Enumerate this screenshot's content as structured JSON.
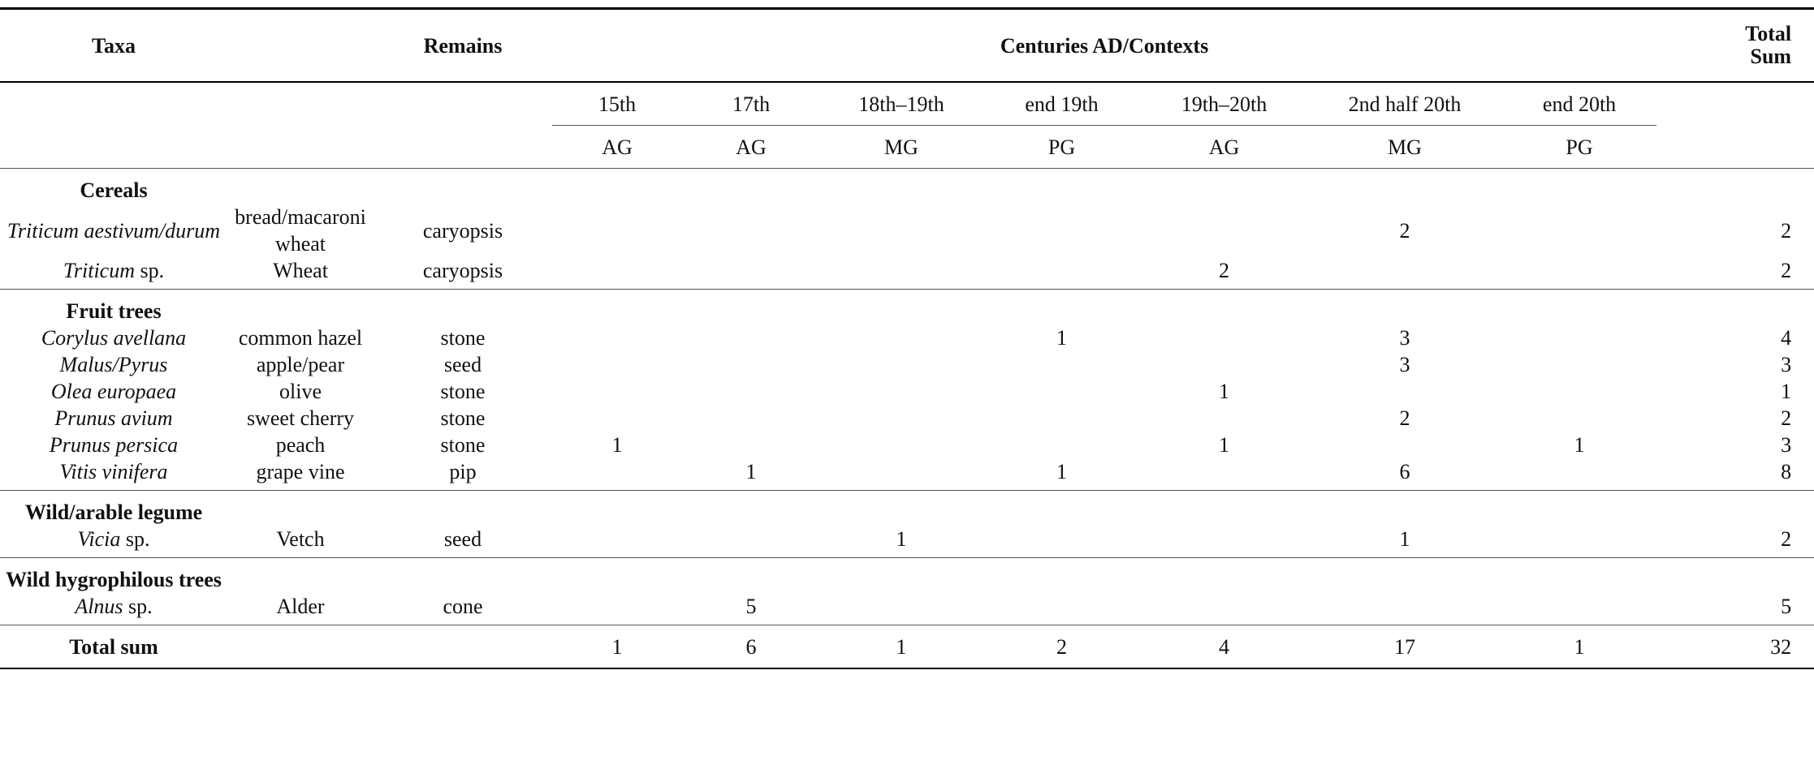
{
  "header": {
    "taxa": "Taxa",
    "remains": "Remains",
    "centuries": "Centuries AD/Contexts",
    "total": "Total Sum",
    "periods": [
      {
        "century": "15th",
        "context": "AG"
      },
      {
        "century": "17th",
        "context": "AG"
      },
      {
        "century": "18th–19th",
        "context": "MG"
      },
      {
        "century": "end 19th",
        "context": "PG"
      },
      {
        "century": "19th–20th",
        "context": "AG"
      },
      {
        "century": "2nd half 20th",
        "context": "MG"
      },
      {
        "century": "end 20th",
        "context": "PG"
      }
    ]
  },
  "groups": [
    {
      "name": "Cereals",
      "rows": [
        {
          "taxon": "Triticum aestivum/durum",
          "common": "bread/macaroni wheat",
          "remains": "caryopsis",
          "counts": [
            null,
            null,
            null,
            null,
            null,
            2,
            null
          ],
          "total": 2
        },
        {
          "taxon": "Triticum",
          "qualifier": "sp.",
          "common": "Wheat",
          "remains": "caryopsis",
          "counts": [
            null,
            null,
            null,
            null,
            2,
            null,
            null
          ],
          "total": 2
        }
      ]
    },
    {
      "name": "Fruit trees",
      "rows": [
        {
          "taxon": "Corylus avellana",
          "common": "common hazel",
          "remains": "stone",
          "counts": [
            null,
            null,
            null,
            1,
            null,
            3,
            null
          ],
          "total": 4
        },
        {
          "taxon": "Malus/Pyrus",
          "common": "apple/pear",
          "remains": "seed",
          "counts": [
            null,
            null,
            null,
            null,
            null,
            3,
            null
          ],
          "total": 3
        },
        {
          "taxon": "Olea europaea",
          "common": "olive",
          "remains": "stone",
          "counts": [
            null,
            null,
            null,
            null,
            1,
            null,
            null
          ],
          "total": 1
        },
        {
          "taxon": "Prunus avium",
          "common": "sweet cherry",
          "remains": "stone",
          "counts": [
            null,
            null,
            null,
            null,
            null,
            2,
            null
          ],
          "total": 2
        },
        {
          "taxon": "Prunus persica",
          "common": "peach",
          "remains": "stone",
          "counts": [
            1,
            null,
            null,
            null,
            1,
            null,
            1
          ],
          "total": 3
        },
        {
          "taxon": "Vitis vinifera",
          "common": "grape vine",
          "remains": "pip",
          "counts": [
            null,
            1,
            null,
            1,
            null,
            6,
            null
          ],
          "total": 8
        }
      ]
    },
    {
      "name": "Wild/arable legume",
      "rows": [
        {
          "taxon": "Vicia",
          "qualifier": "sp.",
          "common": "Vetch",
          "remains": "seed",
          "counts": [
            null,
            null,
            1,
            null,
            null,
            1,
            null
          ],
          "total": 2
        }
      ]
    },
    {
      "name": "Wild hygrophilous trees",
      "rows": [
        {
          "taxon": "Alnus",
          "qualifier": "sp.",
          "common": "Alder",
          "remains": "cone",
          "counts": [
            null,
            5,
            null,
            null,
            null,
            null,
            null
          ],
          "total": 5
        }
      ]
    }
  ],
  "footer": {
    "label": "Total sum",
    "counts": [
      1,
      6,
      1,
      2,
      4,
      17,
      1
    ],
    "total": 32
  }
}
